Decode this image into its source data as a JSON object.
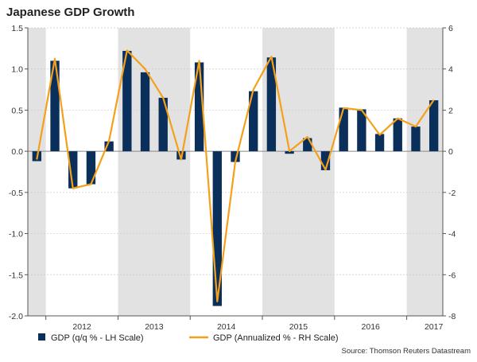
{
  "chart_data": {
    "type": "bar+line",
    "title": "Japanese GDP Growth",
    "source": "Source: Thomson Reuters Datastream",
    "periods": [
      "2011Q4",
      "2012Q1",
      "2012Q2",
      "2012Q3",
      "2012Q4",
      "2013Q1",
      "2013Q2",
      "2013Q3",
      "2013Q4",
      "2014Q1",
      "2014Q2",
      "2014Q3",
      "2014Q4",
      "2015Q1",
      "2015Q2",
      "2015Q3",
      "2015Q4",
      "2016Q1",
      "2016Q2",
      "2016Q3",
      "2016Q4",
      "2017Q1",
      "2017Q2"
    ],
    "year_labels": [
      "2012",
      "2013",
      "2014",
      "2015",
      "2016",
      "2017"
    ],
    "year_label_positions": [
      2.5,
      6.5,
      10.5,
      14.5,
      18.5,
      22.0
    ],
    "shaded_years": [
      {
        "from": -0.5,
        "to": 0.5
      },
      {
        "from": 4.5,
        "to": 8.5
      },
      {
        "from": 12.5,
        "to": 16.5
      },
      {
        "from": 20.5,
        "to": 22.5
      }
    ],
    "left_axis": {
      "label": "GDP (q/q % - LH Scale)",
      "ylim": [
        -2.0,
        1.5
      ],
      "ticks": [
        "-2.0",
        "-1.5",
        "-1.0",
        "-0.5",
        "0.0",
        "0.5",
        "1.0",
        "1.5"
      ]
    },
    "right_axis": {
      "label": "GDP (Annualized % - RH Scale)",
      "ylim": [
        -8,
        6
      ],
      "ticks": [
        "-8",
        "-6",
        "-4",
        "-2",
        "0",
        "2",
        "4",
        "6"
      ]
    },
    "series": [
      {
        "name": "GDP (q/q % - LH Scale)",
        "type": "bar",
        "axis": "left",
        "values": [
          -0.12,
          1.1,
          -0.45,
          -0.4,
          0.12,
          1.22,
          0.96,
          0.65,
          -0.1,
          1.08,
          -1.88,
          -0.13,
          0.73,
          1.14,
          -0.03,
          0.16,
          -0.23,
          0.53,
          0.51,
          0.21,
          0.4,
          0.3,
          0.62
        ]
      },
      {
        "name": "GDP (Annualized % - RH Scale)",
        "type": "line",
        "axis": "right",
        "values": [
          -0.4,
          4.5,
          -1.8,
          -1.6,
          0.5,
          4.9,
          4.0,
          2.6,
          -0.4,
          4.4,
          -7.3,
          -0.5,
          3.0,
          4.6,
          0.0,
          0.7,
          -0.9,
          2.1,
          2.0,
          0.8,
          1.6,
          1.2,
          2.5
        ]
      }
    ],
    "colors": {
      "bar": "#0b2f5b",
      "line": "#f5a01a",
      "shade": "#e2e2e2",
      "grid": "#cccccc",
      "axis": "#555555",
      "zero": "#888888"
    }
  }
}
